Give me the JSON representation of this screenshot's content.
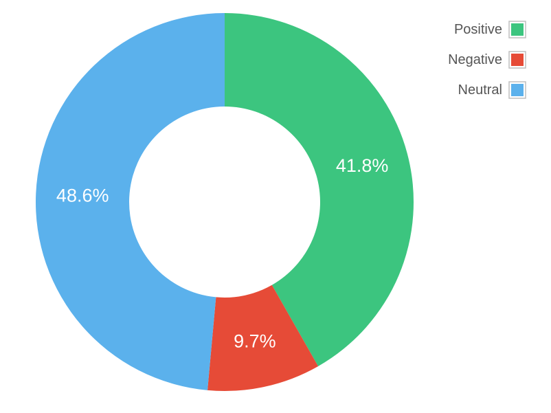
{
  "chart_data": {
    "type": "pie",
    "variant": "donut",
    "categories": [
      "Positive",
      "Negative",
      "Neutral"
    ],
    "values": [
      41.8,
      9.7,
      48.6
    ],
    "data_labels": [
      "41.8%",
      "9.7%",
      "48.6%"
    ],
    "colors": [
      "#3cc57f",
      "#e64b37",
      "#5bb1ec"
    ],
    "legend": "top-right",
    "start_angle": "12 o'clock, clockwise"
  }
}
